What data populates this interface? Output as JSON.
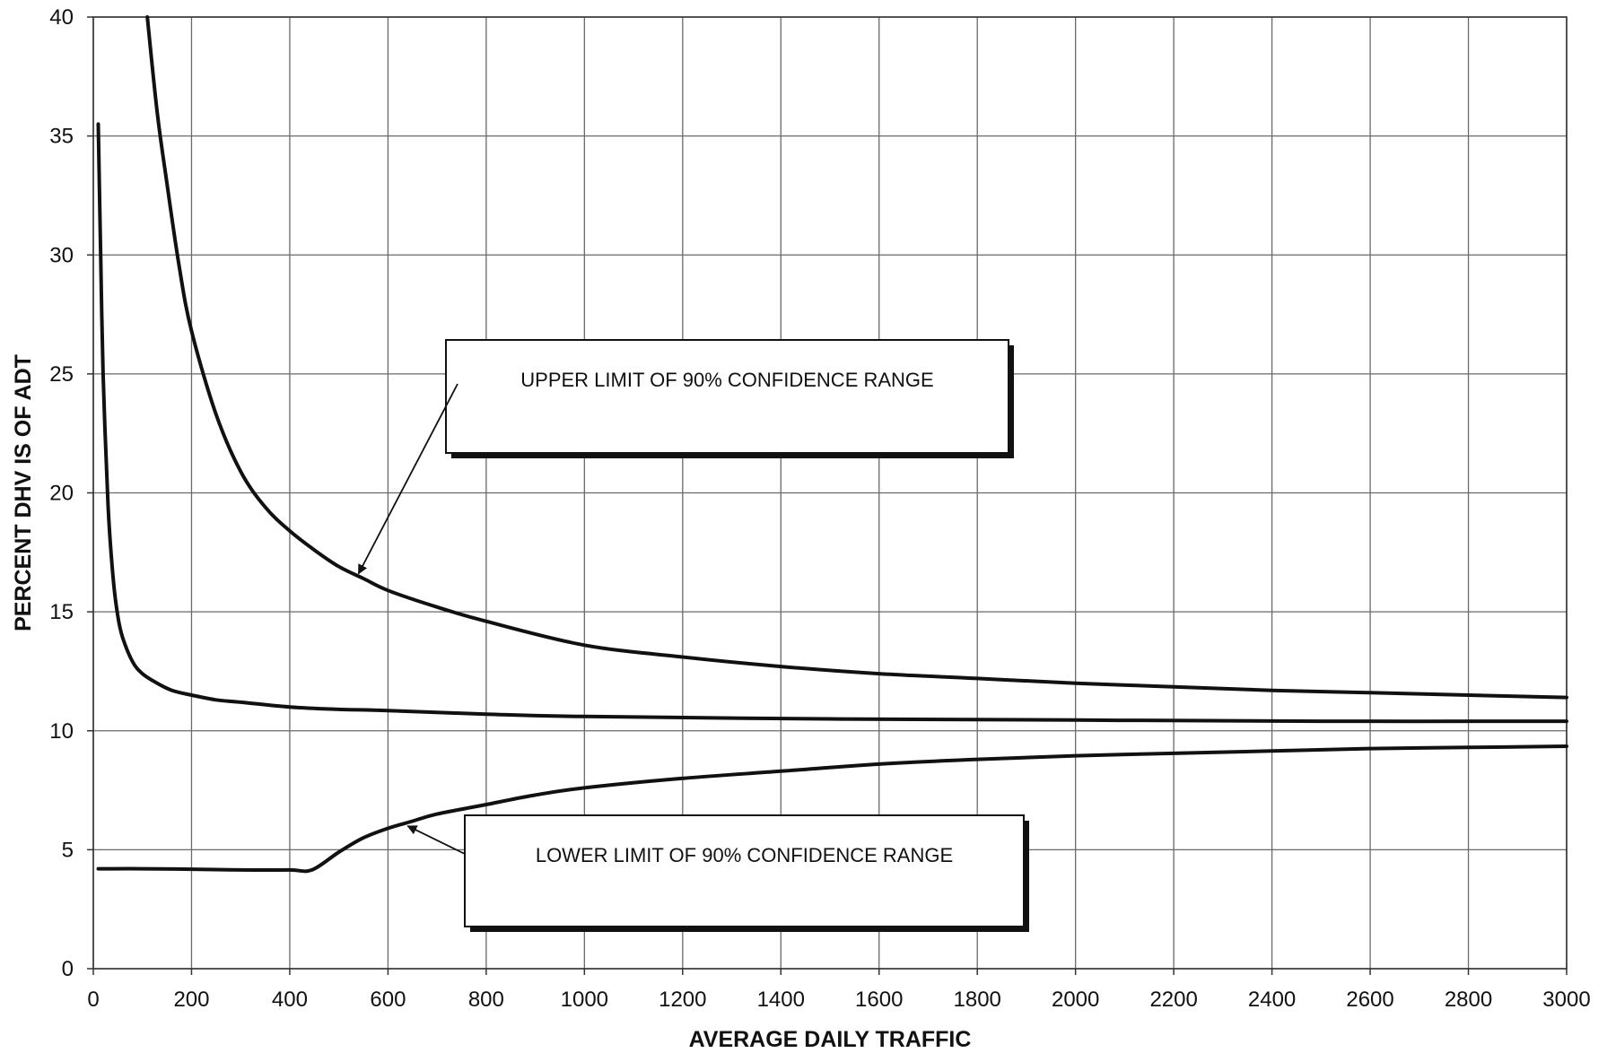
{
  "chart_data": {
    "type": "line",
    "title": "",
    "xlabel": "AVERAGE DAILY TRAFFIC",
    "ylabel": "PERCENT DHV IS OF ADT",
    "xlim": [
      0,
      3000
    ],
    "ylim": [
      0,
      40
    ],
    "xticks": [
      0,
      200,
      400,
      600,
      800,
      1000,
      1200,
      1400,
      1600,
      1800,
      2000,
      2200,
      2400,
      2600,
      2800,
      3000
    ],
    "yticks": [
      0,
      5,
      10,
      15,
      20,
      25,
      30,
      35,
      40
    ],
    "grid": true,
    "legend": "none",
    "series": [
      {
        "x": [
          110,
          130,
          150,
          175,
          200,
          250,
          300,
          350,
          400,
          450,
          500,
          550,
          600,
          700,
          800,
          1000,
          1200,
          1400,
          1600,
          1800,
          2000,
          2200,
          2400,
          2600,
          2800,
          3000
        ],
        "values": [
          40,
          36,
          33,
          29.5,
          26.8,
          23.3,
          20.9,
          19.4,
          18.4,
          17.6,
          16.9,
          16.4,
          15.9,
          15.2,
          14.6,
          13.6,
          13.1,
          12.7,
          12.4,
          12.2,
          12.0,
          11.85,
          11.7,
          11.6,
          11.5,
          11.4
        ]
      },
      {
        "x": [
          10,
          15,
          20,
          30,
          40,
          50,
          60,
          80,
          100,
          130,
          160,
          200,
          250,
          300,
          400,
          500,
          600,
          800,
          1000,
          1500,
          2000,
          2500,
          3000
        ],
        "values": [
          35.5,
          30,
          25,
          19.5,
          16.5,
          14.8,
          13.9,
          12.9,
          12.4,
          12.0,
          11.7,
          11.5,
          11.3,
          11.2,
          11.0,
          10.9,
          10.85,
          10.7,
          10.6,
          10.5,
          10.45,
          10.4,
          10.4
        ]
      },
      {
        "x": [
          10,
          100,
          200,
          300,
          400,
          445,
          500,
          550,
          600,
          650,
          700,
          800,
          900,
          1000,
          1200,
          1400,
          1600,
          1800,
          2000,
          2200,
          2400,
          2600,
          2800,
          3000
        ],
        "values": [
          4.2,
          4.2,
          4.18,
          4.15,
          4.15,
          4.15,
          4.9,
          5.5,
          5.9,
          6.2,
          6.5,
          6.9,
          7.3,
          7.6,
          8.0,
          8.3,
          8.6,
          8.8,
          8.95,
          9.05,
          9.15,
          9.25,
          9.3,
          9.35
        ]
      }
    ],
    "annotations": [
      {
        "text": "UPPER LIMIT OF 90% CONFIDENCE RANGE",
        "points_to": [
          540,
          16.6
        ]
      },
      {
        "text": "LOWER LIMIT OF 90% CONFIDENCE RANGE",
        "points_to": [
          640,
          6.0
        ]
      }
    ]
  }
}
